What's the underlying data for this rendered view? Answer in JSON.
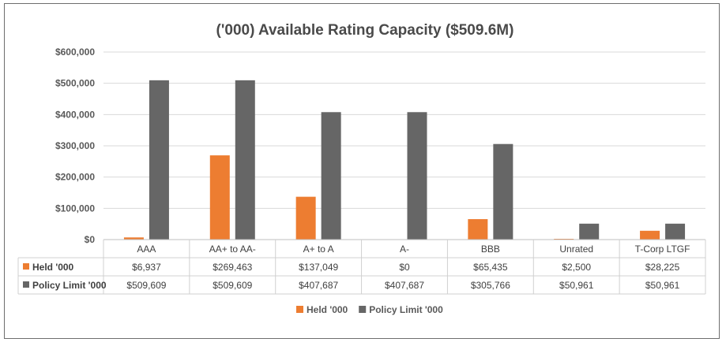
{
  "chart_data": {
    "type": "bar",
    "title": "('000) Available Rating Capacity ($509.6M)",
    "categories": [
      "AAA",
      "AA+ to AA-",
      "A+ to A",
      "A-",
      "BBB",
      "Unrated",
      "T-Corp LTGF"
    ],
    "series": [
      {
        "name": "Held '000",
        "values": [
          6937,
          269463,
          137049,
          0,
          65435,
          2500,
          28225
        ],
        "labels": [
          "$6,937",
          "$269,463",
          "$137,049",
          "$0",
          "$65,435",
          "$2,500",
          "$28,225"
        ],
        "color": "#ed7d31"
      },
      {
        "name": "Policy Limit '000",
        "values": [
          509609,
          509609,
          407687,
          407687,
          305766,
          50961,
          50961
        ],
        "labels": [
          "$509,609",
          "$509,609",
          "$407,687",
          "$407,687",
          "$305,766",
          "$50,961",
          "$50,961"
        ],
        "color": "#666666"
      }
    ],
    "ylim": [
      0,
      600000
    ],
    "yticks": [
      0,
      100000,
      200000,
      300000,
      400000,
      500000,
      600000
    ],
    "ytick_labels": [
      "$0",
      "$100,000",
      "$200,000",
      "$300,000",
      "$400,000",
      "$500,000",
      "$600,000"
    ],
    "grid": true,
    "legend": "bottom",
    "data_table": true
  }
}
